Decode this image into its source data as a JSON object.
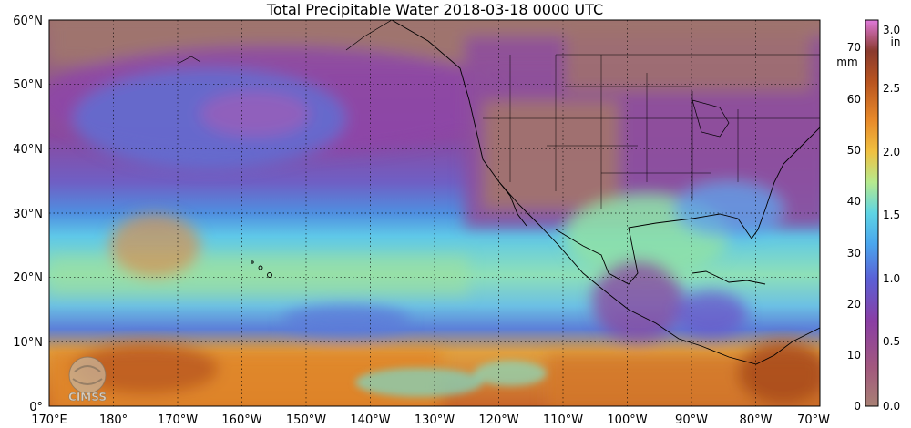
{
  "title": "Total Precipitable Water  2018-03-18 0000 UTC",
  "map": {
    "lat_labels": [
      "0°",
      "10°N",
      "20°N",
      "30°N",
      "40°N",
      "50°N",
      "60°N"
    ],
    "lon_labels": [
      "170°E",
      "180°",
      "170°W",
      "160°W",
      "150°W",
      "140°W",
      "130°W",
      "120°W",
      "110°W",
      "100°W",
      "90°W",
      "80°W",
      "70°W"
    ],
    "lat_range": [
      0,
      60
    ],
    "lon_range": [
      "170°E",
      "70°W"
    ],
    "grid": "dotted 10° graticule",
    "colors": {
      "dry": "#a0766e",
      "purple": "#8a3ea4",
      "blue": "#4f8fe0",
      "cyan": "#55d2e6",
      "green": "#a8e086",
      "orange": "#e1852a",
      "brown": "#a8481c"
    }
  },
  "colorbar": {
    "mm_unit": "mm",
    "in_unit": "in",
    "mm_ticks": [
      "0",
      "10",
      "20",
      "30",
      "40",
      "50",
      "60",
      "70"
    ],
    "in_ticks": [
      "0.0",
      "0.5",
      "1.0",
      "1.5",
      "2.0",
      "2.5",
      "3.0"
    ]
  },
  "logo": {
    "text": "CIMSS"
  }
}
